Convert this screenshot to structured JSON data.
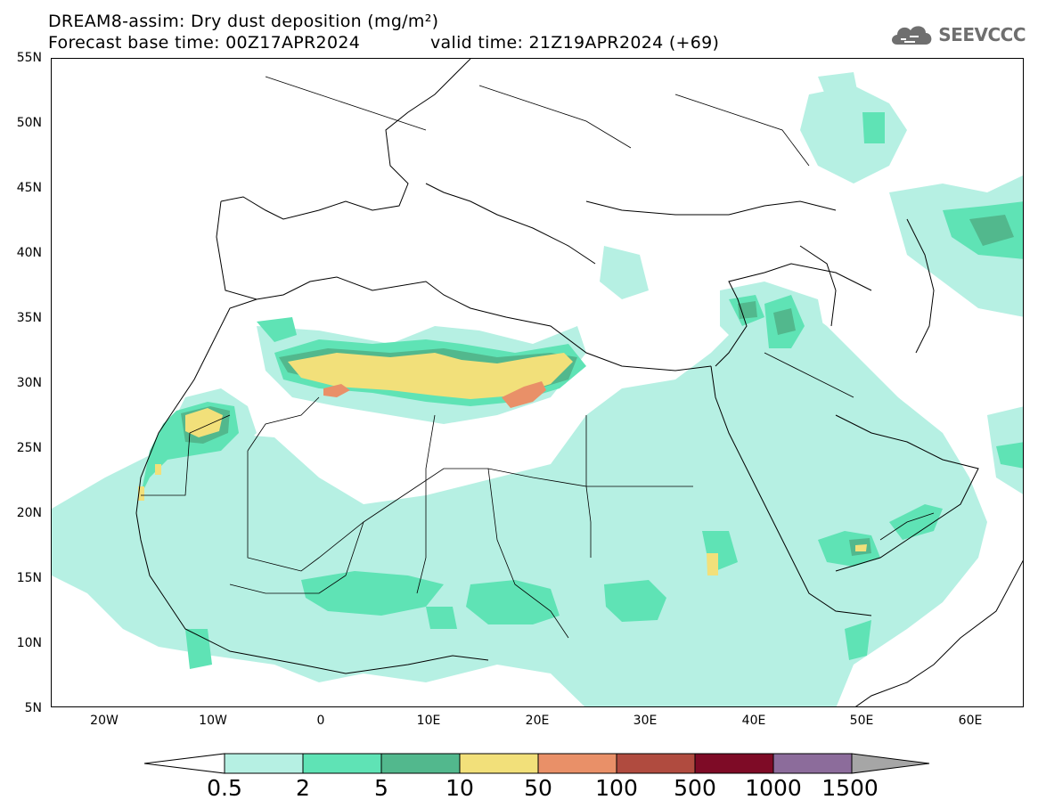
{
  "header": {
    "title_line1": "DREAM8-assim: Dry dust deposition (mg/m²)",
    "title_line2_left": "Forecast base time: 00Z17APR2024",
    "title_line2_right": "valid time: 21Z19APR2024 (+69)"
  },
  "logo": {
    "text": "SEEVCCC",
    "icon": "cloud-icon"
  },
  "axes": {
    "lat_labels": [
      "55N",
      "50N",
      "45N",
      "40N",
      "35N",
      "30N",
      "25N",
      "20N",
      "15N",
      "10N",
      "5N"
    ],
    "lon_labels": [
      "20W",
      "10W",
      "0",
      "10E",
      "20E",
      "30E",
      "40E",
      "50E",
      "60E"
    ]
  },
  "colorbar": {
    "labels": [
      "0.5",
      "2",
      "5",
      "10",
      "50",
      "100",
      "500",
      "1000",
      "1500"
    ],
    "colors": [
      "#b6f0e3",
      "#5fe3b5",
      "#52b88d",
      "#f2e07a",
      "#e99068",
      "#b04b3f",
      "#7e0b26",
      "#8c6c9b"
    ],
    "under_color": "#ffffff",
    "over_color": "#a6a6a6"
  },
  "palette": {
    "lvl1": "#b6f0e3",
    "lvl2": "#5fe3b5",
    "lvl3": "#52b88d",
    "lvl4": "#f2e07a",
    "lvl5": "#e99068"
  }
}
